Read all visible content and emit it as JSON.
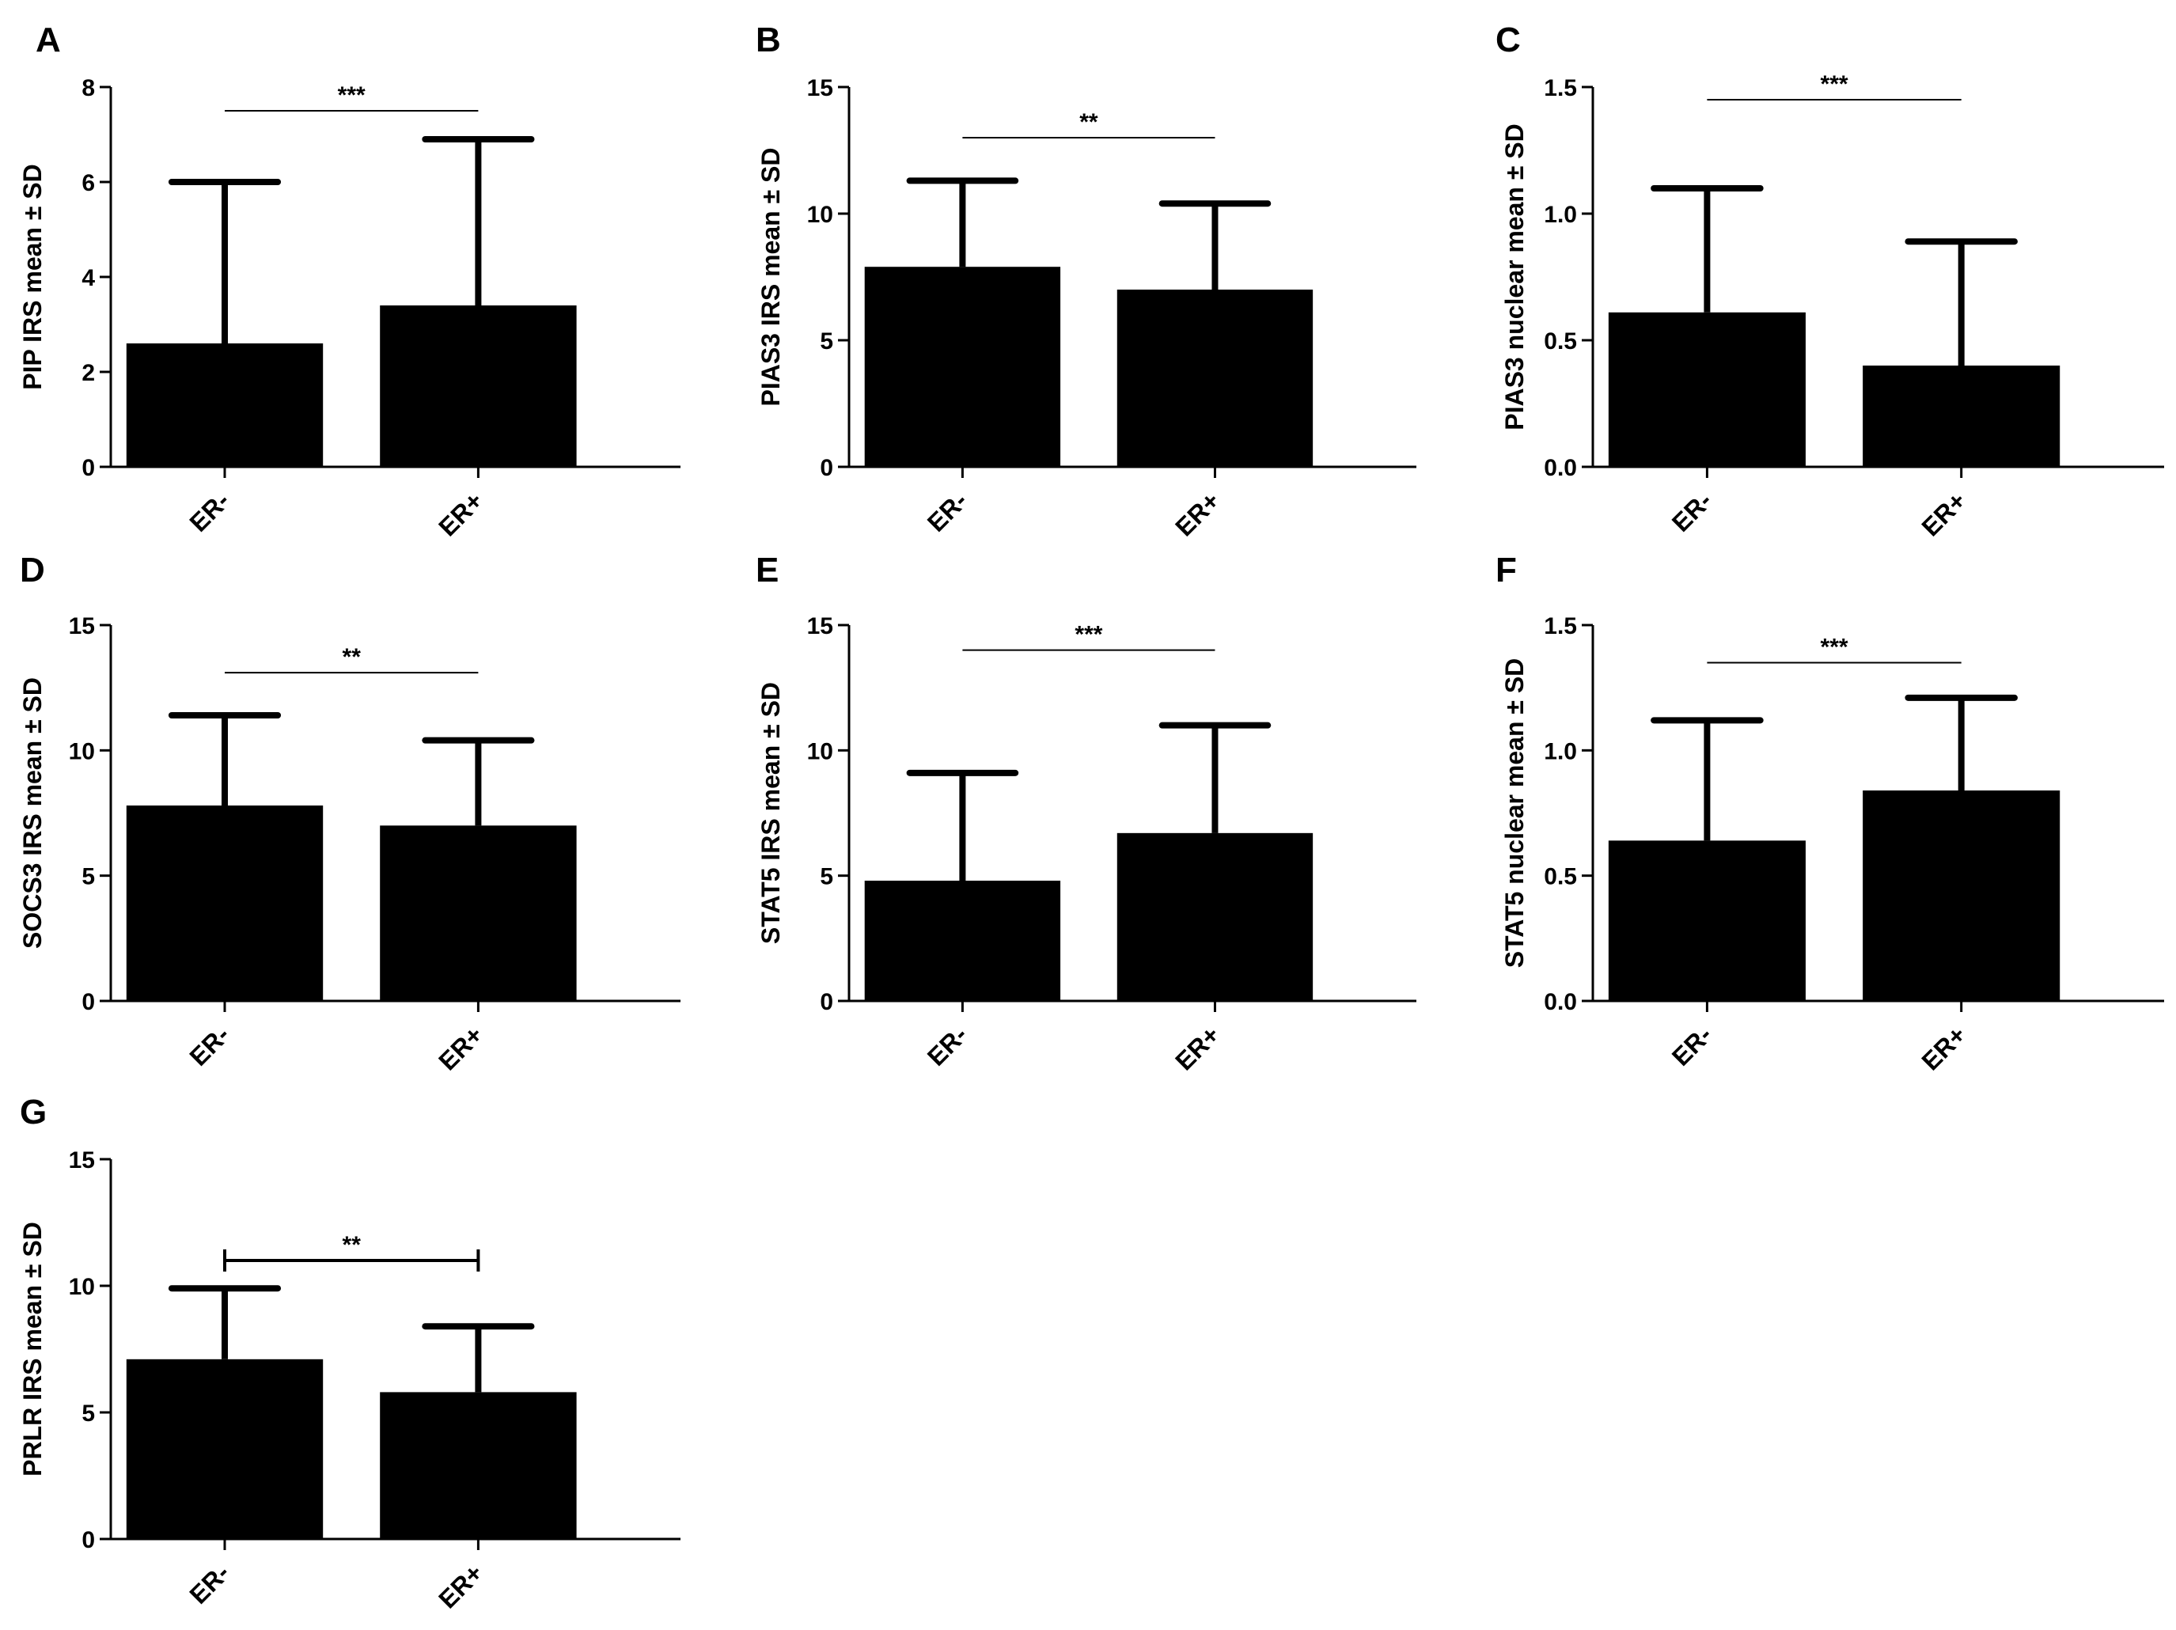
{
  "chart_data": [
    {
      "panel": "A",
      "type": "bar",
      "ylabel": "PIP IRS mean ± SD",
      "categories": [
        "ER-",
        "ER+"
      ],
      "values": [
        2.6,
        3.4
      ],
      "errors": [
        3.4,
        3.5
      ],
      "ylim": [
        0,
        8
      ],
      "yticks": [
        "0",
        "2",
        "4",
        "6",
        "8"
      ],
      "ytick_values": [
        0,
        2,
        4,
        6,
        8
      ],
      "significance": "***",
      "sig_y": 7.5,
      "sig_caps": false
    },
    {
      "panel": "B",
      "type": "bar",
      "ylabel": "PIAS3 IRS mean ± SD",
      "categories": [
        "ER-",
        "ER+"
      ],
      "values": [
        7.9,
        7.0
      ],
      "errors": [
        3.4,
        3.4
      ],
      "ylim": [
        0,
        15
      ],
      "yticks": [
        "0",
        "5",
        "10",
        "15"
      ],
      "ytick_values": [
        0,
        5,
        10,
        15
      ],
      "significance": "**",
      "sig_y": 13.0,
      "sig_caps": false
    },
    {
      "panel": "C",
      "type": "bar",
      "ylabel": "PIAS3  nuclear mean ± SD",
      "categories": [
        "ER-",
        "ER+"
      ],
      "values": [
        0.61,
        0.4
      ],
      "errors": [
        0.49,
        0.49
      ],
      "ylim": [
        0,
        1.5
      ],
      "yticks": [
        "0.0",
        "0.5",
        "1.0",
        "1.5"
      ],
      "ytick_values": [
        0,
        0.5,
        1.0,
        1.5
      ],
      "significance": "***",
      "sig_y": 1.45,
      "sig_caps": false
    },
    {
      "panel": "D",
      "type": "bar",
      "ylabel": "SOCS3 IRS mean ± SD",
      "categories": [
        "ER-",
        "ER+"
      ],
      "values": [
        7.8,
        7.0
      ],
      "errors": [
        3.6,
        3.4
      ],
      "ylim": [
        0,
        15
      ],
      "yticks": [
        "0",
        "5",
        "10",
        "15"
      ],
      "ytick_values": [
        0,
        5,
        10,
        15
      ],
      "significance": "**",
      "sig_y": 13.1,
      "sig_caps": false
    },
    {
      "panel": "E",
      "type": "bar",
      "ylabel": "STAT5 IRS mean ± SD",
      "categories": [
        "ER-",
        "ER+"
      ],
      "values": [
        4.8,
        6.7
      ],
      "errors": [
        4.3,
        4.3
      ],
      "ylim": [
        0,
        15
      ],
      "yticks": [
        "0",
        "5",
        "10",
        "15"
      ],
      "ytick_values": [
        0,
        5,
        10,
        15
      ],
      "significance": "***",
      "sig_y": 14.0,
      "sig_caps": false
    },
    {
      "panel": "F",
      "type": "bar",
      "ylabel": "STAT5 nuclear mean ± SD",
      "categories": [
        "ER-",
        "ER+"
      ],
      "values": [
        0.64,
        0.84
      ],
      "errors": [
        0.48,
        0.37
      ],
      "ylim": [
        0,
        1.5
      ],
      "yticks": [
        "0.0",
        "0.5",
        "1.0",
        "1.5"
      ],
      "ytick_values": [
        0,
        0.5,
        1.0,
        1.5
      ],
      "significance": "***",
      "sig_y": 1.35,
      "sig_caps": false
    },
    {
      "panel": "G",
      "type": "bar",
      "ylabel": "PRLR IRS mean ± SD",
      "categories": [
        "ER-",
        "ER+"
      ],
      "values": [
        7.1,
        5.8
      ],
      "errors": [
        2.8,
        2.6
      ],
      "ylim": [
        0,
        15
      ],
      "yticks": [
        "0",
        "5",
        "10",
        "15"
      ],
      "ytick_values": [
        0,
        5,
        10,
        15
      ],
      "significance": "**",
      "sig_y": 11.0,
      "sig_caps": true
    }
  ]
}
